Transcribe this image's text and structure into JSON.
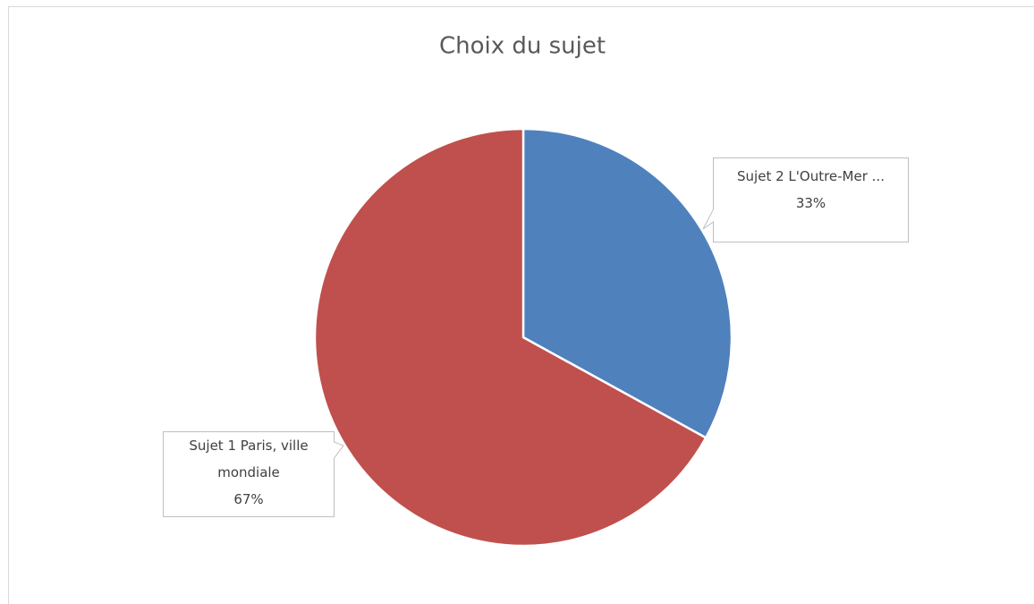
{
  "chart_data": {
    "type": "pie",
    "title": "Choix du sujet",
    "categories": [
      "Sujet 2 L'Outre-Mer ...",
      "Sujet 1 Paris, ville mondiale"
    ],
    "values": [
      33,
      67
    ],
    "value_labels": [
      "33%",
      "67%"
    ],
    "colors": [
      "#4f81bd",
      "#c0504d"
    ]
  }
}
